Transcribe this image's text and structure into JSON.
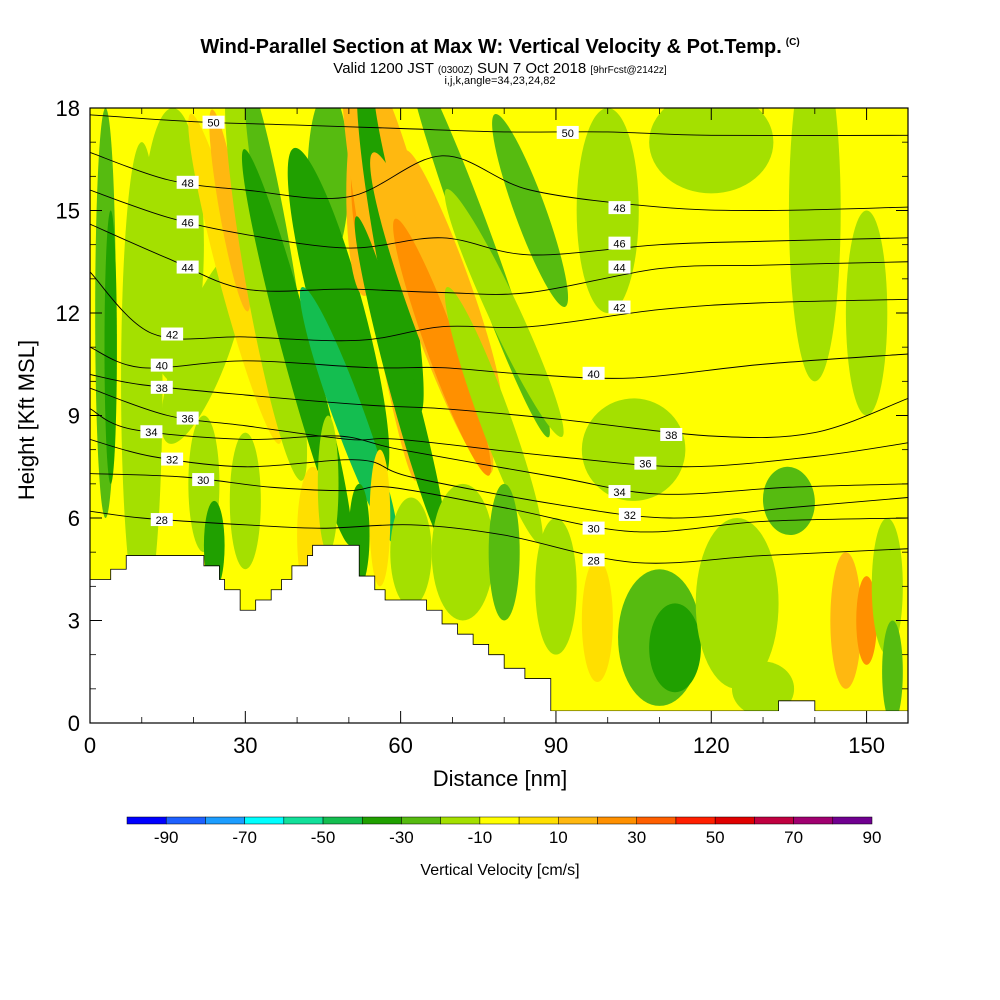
{
  "header": {
    "title": "Wind-Parallel Section at Max W: Vertical Velocity & Pot.Temp.",
    "copyright": "(C)",
    "valid_prefix": "Valid 1200 JST",
    "valid_utc": "(0300Z)",
    "valid_date": "SUN 7 Oct 2018",
    "forecast": "[9hrFcst@2142z]",
    "indices": "i,j,k,angle=34,23,24,82"
  },
  "chart_data": {
    "type": "heatmap",
    "xlabel": "Distance [nm]",
    "ylabel": "Height [Kft MSL]",
    "xlim": [
      0,
      158
    ],
    "ylim": [
      0,
      18
    ],
    "x_ticks": [
      0,
      30,
      60,
      90,
      120,
      150
    ],
    "y_ticks": [
      0,
      3,
      6,
      9,
      12,
      15,
      18
    ],
    "colorbar": {
      "label": "Vertical Velocity [cm/s]",
      "tick_labels": [
        -90,
        -70,
        -50,
        -30,
        -10,
        10,
        30,
        50,
        70,
        90
      ],
      "colors": [
        "#0000ff",
        "#1e60ff",
        "#1c9dff",
        "#00ffff",
        "#12e09a",
        "#14be50",
        "#20a000",
        "#56bb10",
        "#a4e000",
        "#ffff00",
        "#ffdf00",
        "#ffb810",
        "#ff9000",
        "#ff5f00",
        "#ff1f00",
        "#e00000",
        "#c00040",
        "#a00070",
        "#700090"
      ]
    },
    "terrain_profile": [
      [
        0,
        4.2
      ],
      [
        4,
        4.2
      ],
      [
        4,
        4.5
      ],
      [
        7,
        4.5
      ],
      [
        7,
        4.9
      ],
      [
        22,
        4.9
      ],
      [
        22,
        4.6
      ],
      [
        25,
        4.6
      ],
      [
        25,
        4.2
      ],
      [
        26,
        4.2
      ],
      [
        26,
        3.9
      ],
      [
        29,
        3.9
      ],
      [
        29,
        3.3
      ],
      [
        32,
        3.3
      ],
      [
        32,
        3.6
      ],
      [
        35,
        3.6
      ],
      [
        35,
        3.9
      ],
      [
        37,
        3.9
      ],
      [
        37,
        4.2
      ],
      [
        39,
        4.2
      ],
      [
        39,
        4.6
      ],
      [
        42,
        4.6
      ],
      [
        42,
        4.9
      ],
      [
        43,
        4.9
      ],
      [
        43,
        5.2
      ],
      [
        52,
        5.2
      ],
      [
        52,
        4.3
      ],
      [
        55,
        4.3
      ],
      [
        55,
        3.9
      ],
      [
        57,
        3.9
      ],
      [
        57,
        3.6
      ],
      [
        65,
        3.6
      ],
      [
        65,
        3.3
      ],
      [
        68,
        3.3
      ],
      [
        68,
        2.9
      ],
      [
        71,
        2.9
      ],
      [
        71,
        2.6
      ],
      [
        74,
        2.6
      ],
      [
        74,
        2.3
      ],
      [
        77,
        2.3
      ],
      [
        77,
        2.0
      ],
      [
        80,
        2.0
      ],
      [
        80,
        1.6
      ],
      [
        84,
        1.6
      ],
      [
        84,
        1.3
      ],
      [
        89,
        1.3
      ],
      [
        89,
        0.35
      ],
      [
        133,
        0.35
      ],
      [
        133,
        0.65
      ],
      [
        140,
        0.65
      ],
      [
        140,
        0.35
      ],
      [
        158,
        0.35
      ]
    ],
    "contour_series": [
      {
        "name": "50",
        "y_at_x": [
          [
            0,
            17.8
          ],
          [
            20,
            17.6
          ],
          [
            40,
            17.5
          ],
          [
            60,
            17.4
          ],
          [
            80,
            17.3
          ],
          [
            100,
            17.3
          ],
          [
            120,
            17.2
          ],
          [
            158,
            17.2
          ]
        ]
      },
      {
        "name": "48",
        "y_at_x": [
          [
            0,
            16.7
          ],
          [
            15,
            15.9
          ],
          [
            30,
            15.6
          ],
          [
            50,
            15.4
          ],
          [
            68,
            16.6
          ],
          [
            85,
            15.6
          ],
          [
            110,
            15.1
          ],
          [
            130,
            15.0
          ],
          [
            158,
            15.1
          ]
        ]
      },
      {
        "name": "46",
        "y_at_x": [
          [
            0,
            15.6
          ],
          [
            15,
            14.8
          ],
          [
            30,
            14.3
          ],
          [
            50,
            13.9
          ],
          [
            68,
            14.2
          ],
          [
            85,
            13.7
          ],
          [
            110,
            14.0
          ],
          [
            130,
            14.1
          ],
          [
            158,
            14.2
          ]
        ]
      },
      {
        "name": "44",
        "y_at_x": [
          [
            0,
            14.6
          ],
          [
            15,
            13.6
          ],
          [
            30,
            12.7
          ],
          [
            50,
            12.7
          ],
          [
            68,
            12.6
          ],
          [
            85,
            12.6
          ],
          [
            110,
            13.3
          ],
          [
            130,
            13.4
          ],
          [
            158,
            13.5
          ]
        ]
      },
      {
        "name": "42",
        "y_at_x": [
          [
            0,
            13.2
          ],
          [
            12,
            11.4
          ],
          [
            30,
            11.3
          ],
          [
            52,
            11.2
          ],
          [
            68,
            11.6
          ],
          [
            85,
            11.6
          ],
          [
            110,
            12.1
          ],
          [
            130,
            12.3
          ],
          [
            158,
            12.4
          ]
        ]
      },
      {
        "name": "40",
        "y_at_x": [
          [
            0,
            11.0
          ],
          [
            10,
            10.4
          ],
          [
            30,
            10.6
          ],
          [
            54,
            10.4
          ],
          [
            68,
            10.4
          ],
          [
            85,
            10.2
          ],
          [
            105,
            10.1
          ],
          [
            130,
            10.5
          ],
          [
            158,
            10.8
          ]
        ]
      },
      {
        "name": "38",
        "y_at_x": [
          [
            0,
            10.2
          ],
          [
            10,
            9.9
          ],
          [
            30,
            9.6
          ],
          [
            54,
            9.3
          ],
          [
            68,
            9.2
          ],
          [
            90,
            8.9
          ],
          [
            120,
            8.4
          ],
          [
            140,
            8.5
          ],
          [
            158,
            9.5
          ]
        ]
      },
      {
        "name": "36",
        "y_at_x": [
          [
            0,
            9.8
          ],
          [
            15,
            9.0
          ],
          [
            30,
            8.7
          ],
          [
            50,
            8.3
          ],
          [
            60,
            8.3
          ],
          [
            90,
            7.8
          ],
          [
            115,
            7.5
          ],
          [
            140,
            7.8
          ],
          [
            158,
            8.2
          ]
        ]
      },
      {
        "name": "34",
        "y_at_x": [
          [
            0,
            9.2
          ],
          [
            8,
            8.6
          ],
          [
            30,
            8.3
          ],
          [
            48,
            8.4
          ],
          [
            60,
            8.0
          ],
          [
            90,
            7.2
          ],
          [
            110,
            6.7
          ],
          [
            135,
            6.9
          ],
          [
            158,
            7.0
          ]
        ]
      },
      {
        "name": "32",
        "y_at_x": [
          [
            0,
            8.3
          ],
          [
            12,
            7.8
          ],
          [
            30,
            7.5
          ],
          [
            52,
            7.7
          ],
          [
            62,
            7.2
          ],
          [
            90,
            6.4
          ],
          [
            112,
            6.0
          ],
          [
            135,
            6.3
          ],
          [
            158,
            6.6
          ]
        ]
      },
      {
        "name": "30",
        "y_at_x": [
          [
            0,
            7.3
          ],
          [
            18,
            7.2
          ],
          [
            35,
            6.9
          ],
          [
            50,
            6.8
          ],
          [
            58,
            6.9
          ],
          [
            80,
            6.3
          ],
          [
            105,
            5.6
          ],
          [
            130,
            5.9
          ],
          [
            158,
            6.0
          ]
        ]
      },
      {
        "name": "28",
        "y_at_x": [
          [
            0,
            6.2
          ],
          [
            10,
            6.0
          ],
          [
            30,
            5.8
          ],
          [
            45,
            5.7
          ],
          [
            62,
            5.8
          ],
          [
            80,
            5.5
          ],
          [
            105,
            4.7
          ],
          [
            130,
            4.9
          ],
          [
            158,
            5.1
          ]
        ]
      }
    ]
  }
}
